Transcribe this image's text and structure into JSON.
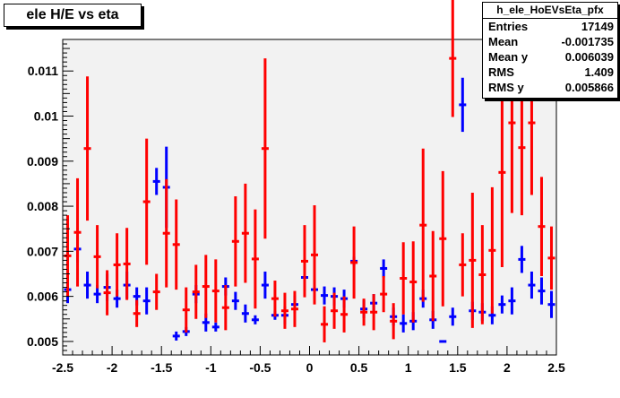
{
  "title": "ele H/E vs eta",
  "stats": {
    "name": "h_ele_HoEVsEta_pfx",
    "rows": [
      {
        "label": "Entries",
        "value": "17149"
      },
      {
        "label": "Mean",
        "value": "-0.001735"
      },
      {
        "label": "Mean y",
        "value": "0.006039"
      },
      {
        "label": "RMS",
        "value": "1.409"
      },
      {
        "label": "RMS y",
        "value": "0.005866"
      }
    ]
  },
  "chart_data": {
    "type": "scatter",
    "title": "ele H/E vs eta",
    "xlabel": "",
    "ylabel": "",
    "xlim": [
      -2.5,
      2.5
    ],
    "ylim": [
      0.0047,
      0.0117
    ],
    "grid": false,
    "x_ticks": [
      "-2.5",
      "-2",
      "-1.5",
      "-1",
      "-0.5",
      "0",
      "0.5",
      "1",
      "1.5",
      "2",
      "2.5"
    ],
    "y_ticks": [
      "0.005",
      "0.006",
      "0.007",
      "0.008",
      "0.009",
      "0.01",
      "0.011"
    ],
    "bin_width": 0.1,
    "series": [
      {
        "color": "#0000ff",
        "points": [
          {
            "x": -2.45,
            "y": 0.00615,
            "err": 0.0003
          },
          {
            "x": -2.35,
            "y": 0.00705,
            "err": 0.0003
          },
          {
            "x": -2.25,
            "y": 0.00625,
            "err": 0.0003
          },
          {
            "x": -2.15,
            "y": 0.00605,
            "err": 0.0002
          },
          {
            "x": -2.05,
            "y": 0.0062,
            "err": 0.0003
          },
          {
            "x": -1.95,
            "y": 0.00595,
            "err": 0.0002
          },
          {
            "x": -1.85,
            "y": 0.00625,
            "err": 0.0003
          },
          {
            "x": -1.75,
            "y": 0.006,
            "err": 0.0002
          },
          {
            "x": -1.65,
            "y": 0.0059,
            "err": 0.0003
          },
          {
            "x": -1.55,
            "y": 0.00855,
            "err": 0.0003
          },
          {
            "x": -1.45,
            "y": 0.00842,
            "err": 0.0009
          },
          {
            "x": -1.35,
            "y": 0.00512,
            "err": 0.0001
          },
          {
            "x": -1.25,
            "y": 0.00522,
            "err": 0.0001
          },
          {
            "x": -1.15,
            "y": 0.00605,
            "err": 0.0002
          },
          {
            "x": -1.05,
            "y": 0.00542,
            "err": 0.0002
          },
          {
            "x": -0.95,
            "y": 0.00532,
            "err": 0.0001
          },
          {
            "x": -0.85,
            "y": 0.00622,
            "err": 0.0002
          },
          {
            "x": -0.75,
            "y": 0.0059,
            "err": 0.0002
          },
          {
            "x": -0.65,
            "y": 0.00562,
            "err": 0.0002
          },
          {
            "x": -0.55,
            "y": 0.00548,
            "err": 0.0001
          },
          {
            "x": -0.45,
            "y": 0.00625,
            "err": 0.0003
          },
          {
            "x": -0.35,
            "y": 0.00558,
            "err": 0.0001
          },
          {
            "x": -0.25,
            "y": 0.00558,
            "err": 0.0002
          },
          {
            "x": -0.15,
            "y": 0.00582,
            "err": 0.0002
          },
          {
            "x": -0.05,
            "y": 0.00642,
            "err": 0.0003
          },
          {
            "x": 0.05,
            "y": 0.00615,
            "err": 0.0002
          },
          {
            "x": 0.15,
            "y": 0.00602,
            "err": 0.0002
          },
          {
            "x": 0.25,
            "y": 0.006,
            "err": 0.0002
          },
          {
            "x": 0.35,
            "y": 0.00595,
            "err": 0.0002
          },
          {
            "x": 0.45,
            "y": 0.00678,
            "err": 0.0001
          },
          {
            "x": 0.55,
            "y": 0.00572,
            "err": 0.0002
          },
          {
            "x": 0.65,
            "y": 0.00585,
            "err": 0.0002
          },
          {
            "x": 0.75,
            "y": 0.00662,
            "err": 0.0002
          },
          {
            "x": 0.85,
            "y": 0.00555,
            "err": 0.0002
          },
          {
            "x": 0.95,
            "y": 0.0054,
            "err": 0.0002
          },
          {
            "x": 1.05,
            "y": 0.00545,
            "err": 0.0002
          },
          {
            "x": 1.15,
            "y": 0.00595,
            "err": 0.0002
          },
          {
            "x": 1.25,
            "y": 0.00548,
            "err": 0.0002
          },
          {
            "x": 1.35,
            "y": 0.005,
            "err": 0.0
          },
          {
            "x": 1.45,
            "y": 0.00555,
            "err": 0.0002
          },
          {
            "x": 1.55,
            "y": 0.01025,
            "err": 0.0006
          },
          {
            "x": 1.65,
            "y": 0.00568,
            "err": 0.0002
          },
          {
            "x": 1.75,
            "y": 0.00565,
            "err": 0.0002
          },
          {
            "x": 1.85,
            "y": 0.00558,
            "err": 0.0002
          },
          {
            "x": 1.95,
            "y": 0.00582,
            "err": 0.0002
          },
          {
            "x": 2.05,
            "y": 0.0059,
            "err": 0.0003
          },
          {
            "x": 2.15,
            "y": 0.00682,
            "err": 0.0003
          },
          {
            "x": 2.25,
            "y": 0.00625,
            "err": 0.0003
          },
          {
            "x": 2.35,
            "y": 0.00612,
            "err": 0.0003
          },
          {
            "x": 2.45,
            "y": 0.00582,
            "err": 0.0003
          }
        ]
      },
      {
        "color": "#ff0000",
        "points": [
          {
            "x": -2.45,
            "y": 0.0069,
            "err": 0.0009
          },
          {
            "x": -2.35,
            "y": 0.00742,
            "err": 0.0012
          },
          {
            "x": -2.25,
            "y": 0.00928,
            "err": 0.0016
          },
          {
            "x": -2.15,
            "y": 0.00688,
            "err": 0.0007
          },
          {
            "x": -2.05,
            "y": 0.00608,
            "err": 0.0005
          },
          {
            "x": -1.95,
            "y": 0.0067,
            "err": 0.0007
          },
          {
            "x": -1.85,
            "y": 0.00672,
            "err": 0.0008
          },
          {
            "x": -1.75,
            "y": 0.00562,
            "err": 0.0003
          },
          {
            "x": -1.65,
            "y": 0.0081,
            "err": 0.0014
          },
          {
            "x": -1.55,
            "y": 0.0061,
            "err": 0.0004
          },
          {
            "x": -1.45,
            "y": 0.0074,
            "err": 0.0012
          },
          {
            "x": -1.35,
            "y": 0.00715,
            "err": 0.001
          },
          {
            "x": -1.25,
            "y": 0.0057,
            "err": 0.0005
          },
          {
            "x": -1.15,
            "y": 0.0061,
            "err": 0.0006
          },
          {
            "x": -1.05,
            "y": 0.00622,
            "err": 0.0007
          },
          {
            "x": -0.95,
            "y": 0.00612,
            "err": 0.0007
          },
          {
            "x": -0.85,
            "y": 0.00575,
            "err": 0.0005
          },
          {
            "x": -0.75,
            "y": 0.00722,
            "err": 0.001
          },
          {
            "x": -0.65,
            "y": 0.0074,
            "err": 0.0011
          },
          {
            "x": -0.55,
            "y": 0.00683,
            "err": 0.0011
          },
          {
            "x": -0.45,
            "y": 0.00928,
            "err": 0.002
          },
          {
            "x": -0.35,
            "y": 0.00595,
            "err": 0.0004
          },
          {
            "x": -0.25,
            "y": 0.00568,
            "err": 0.0004
          },
          {
            "x": -0.15,
            "y": 0.00572,
            "err": 0.0004
          },
          {
            "x": -0.05,
            "y": 0.00678,
            "err": 0.0008
          },
          {
            "x": 0.05,
            "y": 0.00692,
            "err": 0.0011
          },
          {
            "x": 0.15,
            "y": 0.00538,
            "err": 0.0004
          },
          {
            "x": 0.25,
            "y": 0.00568,
            "err": 0.0004
          },
          {
            "x": 0.35,
            "y": 0.0056,
            "err": 0.0004
          },
          {
            "x": 0.45,
            "y": 0.00675,
            "err": 0.0008
          },
          {
            "x": 0.55,
            "y": 0.00565,
            "err": 0.0003
          },
          {
            "x": 0.65,
            "y": 0.00565,
            "err": 0.0004
          },
          {
            "x": 0.75,
            "y": 0.00605,
            "err": 0.0004
          },
          {
            "x": 0.85,
            "y": 0.00545,
            "err": 0.0004
          },
          {
            "x": 0.95,
            "y": 0.0064,
            "err": 0.0008
          },
          {
            "x": 1.05,
            "y": 0.00632,
            "err": 0.0009
          },
          {
            "x": 1.15,
            "y": 0.00758,
            "err": 0.0017
          },
          {
            "x": 1.25,
            "y": 0.00645,
            "err": 0.001
          },
          {
            "x": 1.35,
            "y": 0.00728,
            "err": 0.0015
          },
          {
            "x": 1.45,
            "y": 0.01128,
            "err": 0.0013
          },
          {
            "x": 1.55,
            "y": 0.0067,
            "err": 0.0007
          },
          {
            "x": 1.65,
            "y": 0.0068,
            "err": 0.0015
          },
          {
            "x": 1.75,
            "y": 0.00648,
            "err": 0.0011
          },
          {
            "x": 1.85,
            "y": 0.00702,
            "err": 0.0014
          },
          {
            "x": 1.95,
            "y": 0.00875,
            "err": 0.0021
          },
          {
            "x": 2.05,
            "y": 0.00985,
            "err": 0.002
          },
          {
            "x": 2.15,
            "y": 0.0093,
            "err": 0.0015
          },
          {
            "x": 2.25,
            "y": 0.00985,
            "err": 0.0016
          },
          {
            "x": 2.35,
            "y": 0.00755,
            "err": 0.0011
          },
          {
            "x": 2.45,
            "y": 0.00685,
            "err": 0.0007
          }
        ]
      }
    ]
  }
}
